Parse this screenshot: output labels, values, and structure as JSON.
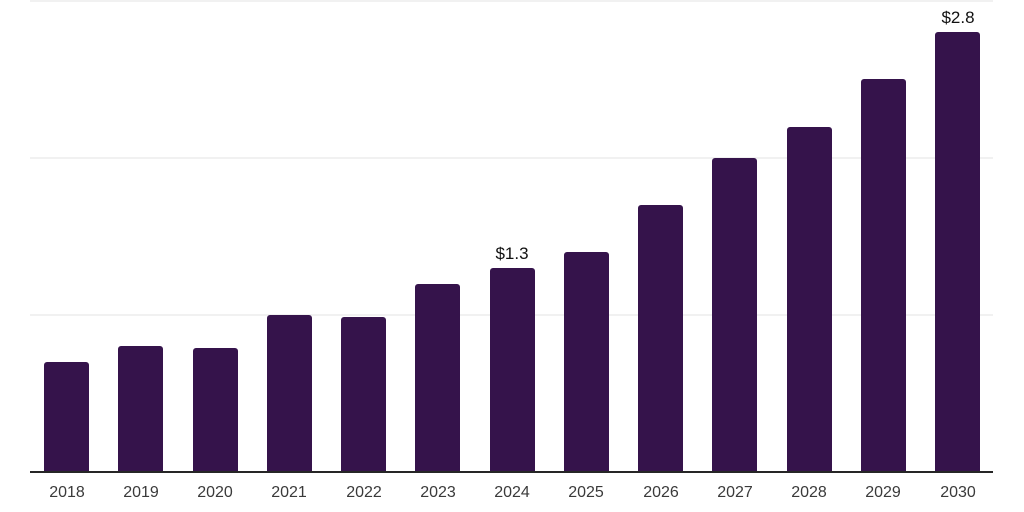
{
  "chart_data": {
    "type": "bar",
    "title": "",
    "xlabel": "",
    "ylabel": "",
    "categories": [
      "2018",
      "2019",
      "2020",
      "2021",
      "2022",
      "2023",
      "2024",
      "2025",
      "2026",
      "2027",
      "2028",
      "2029",
      "2030"
    ],
    "values": [
      0.7,
      0.8,
      0.79,
      1.0,
      0.99,
      1.2,
      1.3,
      1.4,
      1.7,
      2.0,
      2.2,
      2.5,
      2.8
    ],
    "data_labels": [
      {
        "index": 6,
        "text": "$1.3"
      },
      {
        "index": 12,
        "text": "$2.8"
      }
    ],
    "ylim": [
      0,
      3
    ],
    "gridline_values": [
      1,
      2,
      3
    ],
    "grid": "horizontal-only",
    "legend": "none",
    "y_axis_ticks_visible": false,
    "colors": {
      "bar": "#35134B",
      "axis_line": "#262626",
      "gridline": "#f1f1f1",
      "x_label": "#3a3a3a",
      "data_label": "#111111",
      "background": "#ffffff"
    }
  }
}
